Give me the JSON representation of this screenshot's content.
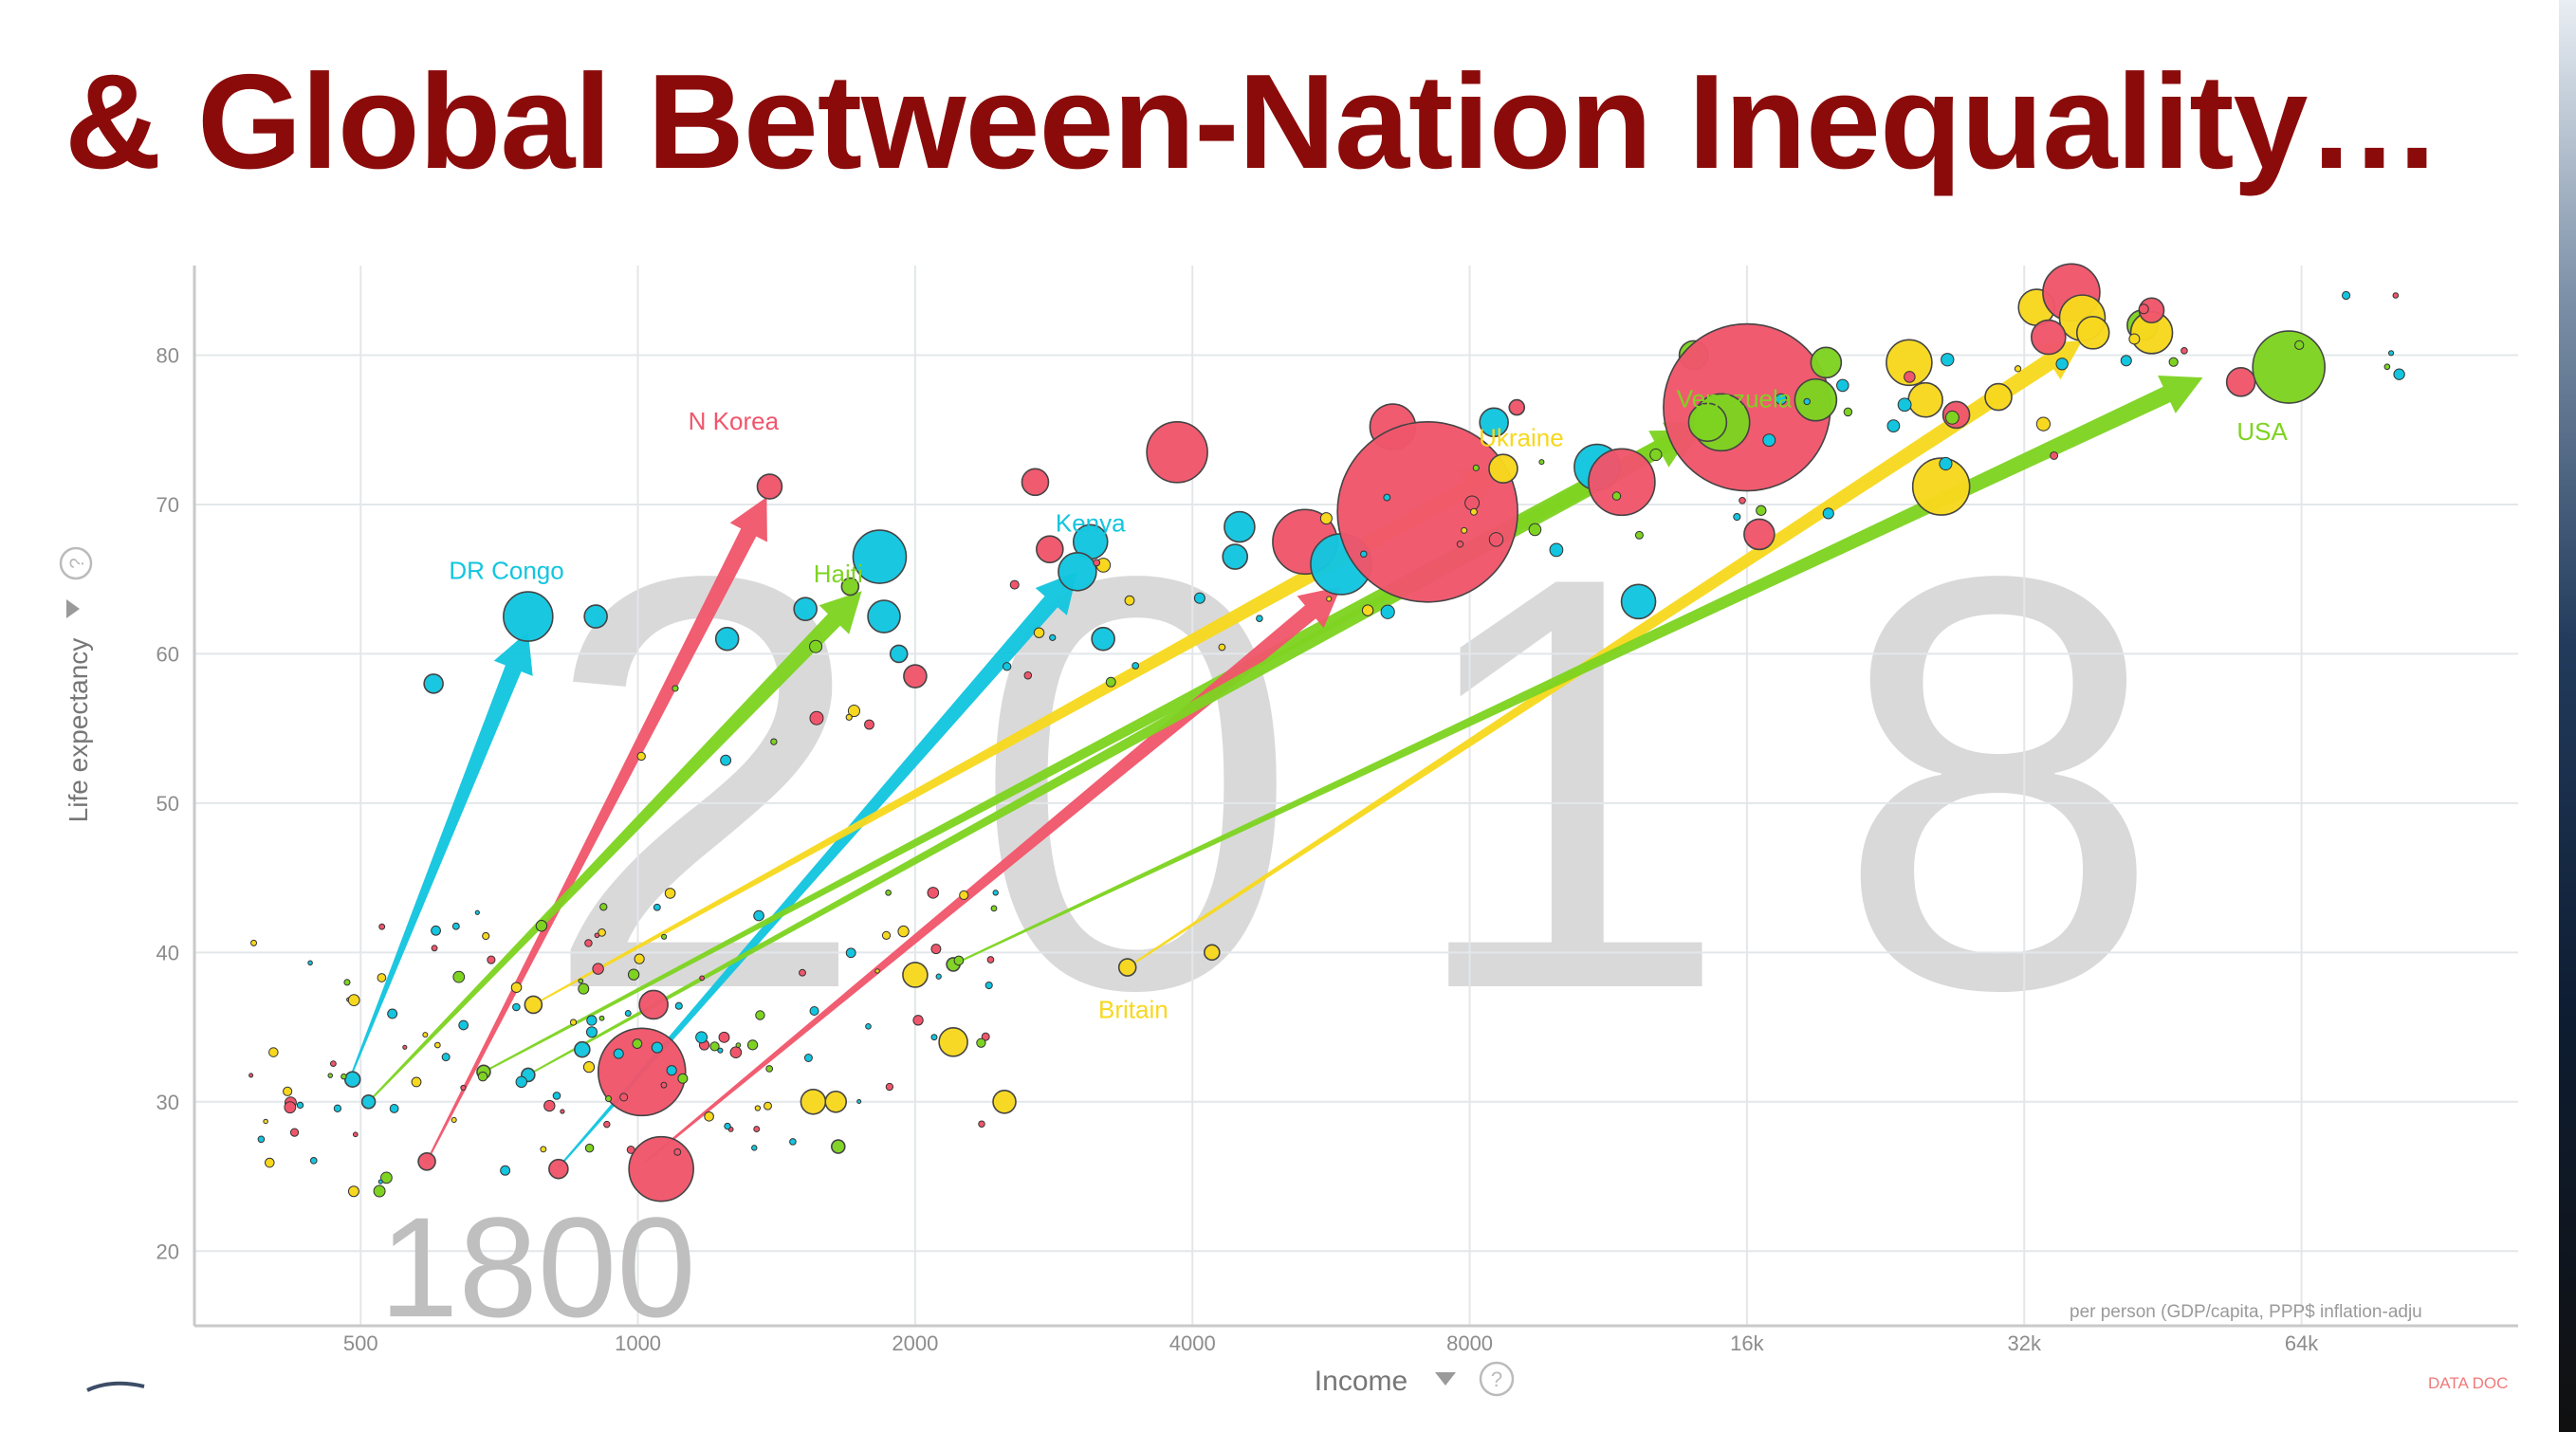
{
  "slide": {
    "title": "& Global Between-Nation Inequality…",
    "title_color": "#8b0b0b"
  },
  "chart_data": {
    "type": "scatter",
    "title": "",
    "xlabel": "Income",
    "xlabel_icons": [
      "dropdown-triangle-icon",
      "help-circle-icon"
    ],
    "ylabel": "Life expectancy",
    "ylabel_icons": [
      "dropdown-triangle-icon",
      "help-circle-icon"
    ],
    "x_scale": "log",
    "xlim": [
      330,
      110000
    ],
    "ylim": [
      15,
      86
    ],
    "x_ticks": [
      500,
      1000,
      2000,
      4000,
      8000,
      16000,
      32000,
      64000
    ],
    "x_tick_labels": [
      "500",
      "1000",
      "2000",
      "4000",
      "8000",
      "16k",
      "32k",
      "64k"
    ],
    "y_ticks": [
      20,
      30,
      40,
      50,
      60,
      70,
      80
    ],
    "y_tick_labels": [
      "20",
      "30",
      "40",
      "50",
      "60",
      "70",
      "80"
    ],
    "grid": true,
    "axis_note": "per person (GDP/capita, PPP$ inflation-adju",
    "footer_note": "DATA DOC",
    "background_year": "2018",
    "start_year": "1800",
    "colors": {
      "red": "#f0566b",
      "cyan": "#13c5df",
      "green": "#7ed321",
      "yellow": "#f7d81e",
      "grid": "#e3e7ea",
      "year_text": "#d9d9d9",
      "start_year_text": "#bfbfbf",
      "tick": "#8c8c8c",
      "note_red": "#f07a7a"
    },
    "trajectories": [
      {
        "country": "DR Congo",
        "color": "cyan",
        "from": [
          490,
          32
        ],
        "to": [
          760,
          61.5
        ],
        "label_at": [
          720,
          65
        ]
      },
      {
        "country": "N Korea",
        "color": "red",
        "from": [
          590,
          26
        ],
        "to": [
          1380,
          70.5
        ],
        "label_at": [
          1270,
          75
        ]
      },
      {
        "country": "Haiti",
        "color": "green",
        "from": [
          510,
          30
        ],
        "to": [
          1750,
          64.2
        ],
        "label_at": [
          1650,
          64.8
        ]
      },
      {
        "country": "Kenya",
        "color": "cyan",
        "from": [
          820,
          25.6
        ],
        "to": [
          3000,
          65.5
        ],
        "label_at": [
          3100,
          68.2
        ]
      },
      {
        "country": "Ukraine",
        "color": "yellow",
        "from": [
          770,
          36.5
        ],
        "to": [
          8700,
          72.4
        ],
        "label_at": [
          9100,
          73.9
        ]
      },
      {
        "country": "Venezuela",
        "color": "green",
        "from": [
          680,
          32
        ],
        "to": [
          14500,
          75.5
        ],
        "label_at": [
          15500,
          76.5
        ]
      },
      {
        "country": "Britain",
        "color": "yellow",
        "from": [
          3400,
          39
        ],
        "to": [
          37000,
          81
        ],
        "label_at": [
          3450,
          35.6
        ]
      },
      {
        "country": "USA",
        "color": "green",
        "from": [
          2200,
          39.2
        ],
        "to": [
          50000,
          78.5
        ],
        "label_at": [
          58000,
          74.3
        ]
      },
      {
        "country": "",
        "color": "red",
        "from": [
          1020,
          26
        ],
        "to": [
          5800,
          64.5
        ],
        "label_at": null
      },
      {
        "country": "",
        "color": "green",
        "from": [
          760,
          31.8
        ],
        "to": [
          14000,
          75
        ],
        "label_at": null
      }
    ],
    "bubbles_2018": [
      {
        "x": 760,
        "y": 62.5,
        "r": 26,
        "color": "cyan"
      },
      {
        "x": 1390,
        "y": 71.2,
        "r": 13,
        "color": "red"
      },
      {
        "x": 1520,
        "y": 63,
        "r": 12,
        "color": "cyan"
      },
      {
        "x": 1830,
        "y": 66.5,
        "r": 28,
        "color": "cyan"
      },
      {
        "x": 1850,
        "y": 62.5,
        "r": 17,
        "color": "cyan"
      },
      {
        "x": 1700,
        "y": 64.5,
        "r": 9,
        "color": "green"
      },
      {
        "x": 1920,
        "y": 60,
        "r": 9,
        "color": "cyan"
      },
      {
        "x": 2000,
        "y": 58.5,
        "r": 12,
        "color": "red"
      },
      {
        "x": 1250,
        "y": 61,
        "r": 12,
        "color": "cyan"
      },
      {
        "x": 900,
        "y": 62.5,
        "r": 12,
        "color": "cyan"
      },
      {
        "x": 600,
        "y": 58,
        "r": 10,
        "color": "cyan"
      },
      {
        "x": 2700,
        "y": 71.5,
        "r": 14,
        "color": "red"
      },
      {
        "x": 2800,
        "y": 67,
        "r": 14,
        "color": "red"
      },
      {
        "x": 3100,
        "y": 67.5,
        "r": 18,
        "color": "cyan"
      },
      {
        "x": 3000,
        "y": 65.5,
        "r": 20,
        "color": "cyan"
      },
      {
        "x": 3200,
        "y": 61,
        "r": 12,
        "color": "cyan"
      },
      {
        "x": 3850,
        "y": 73.5,
        "r": 32,
        "color": "red"
      },
      {
        "x": 4500,
        "y": 68.5,
        "r": 16,
        "color": "cyan"
      },
      {
        "x": 4450,
        "y": 66.5,
        "r": 13,
        "color": "cyan"
      },
      {
        "x": 5300,
        "y": 67.5,
        "r": 34,
        "color": "red"
      },
      {
        "x": 5800,
        "y": 66,
        "r": 32,
        "color": "cyan"
      },
      {
        "x": 6600,
        "y": 75.2,
        "r": 24,
        "color": "red"
      },
      {
        "x": 7200,
        "y": 69.5,
        "r": 95,
        "color": "red"
      },
      {
        "x": 8700,
        "y": 72.4,
        "r": 15,
        "color": "yellow"
      },
      {
        "x": 8500,
        "y": 75.5,
        "r": 15,
        "color": "cyan"
      },
      {
        "x": 9000,
        "y": 76.5,
        "r": 8,
        "color": "red"
      },
      {
        "x": 11000,
        "y": 72.5,
        "r": 24,
        "color": "cyan"
      },
      {
        "x": 11700,
        "y": 71.5,
        "r": 35,
        "color": "red"
      },
      {
        "x": 12200,
        "y": 63.5,
        "r": 18,
        "color": "cyan"
      },
      {
        "x": 14000,
        "y": 80,
        "r": 15,
        "color": "green"
      },
      {
        "x": 16000,
        "y": 76.5,
        "r": 88,
        "color": "red"
      },
      {
        "x": 15000,
        "y": 75.5,
        "r": 30,
        "color": "green"
      },
      {
        "x": 14500,
        "y": 75.5,
        "r": 20,
        "color": "green"
      },
      {
        "x": 16500,
        "y": 68,
        "r": 16,
        "color": "red"
      },
      {
        "x": 19000,
        "y": 77,
        "r": 22,
        "color": "green"
      },
      {
        "x": 19500,
        "y": 79.5,
        "r": 16,
        "color": "green"
      },
      {
        "x": 24000,
        "y": 79.5,
        "r": 24,
        "color": "yellow"
      },
      {
        "x": 25000,
        "y": 77,
        "r": 18,
        "color": "yellow"
      },
      {
        "x": 26000,
        "y": 71.2,
        "r": 30,
        "color": "yellow"
      },
      {
        "x": 27000,
        "y": 76,
        "r": 14,
        "color": "red"
      },
      {
        "x": 33000,
        "y": 83.2,
        "r": 19,
        "color": "yellow"
      },
      {
        "x": 36000,
        "y": 84.2,
        "r": 30,
        "color": "red"
      },
      {
        "x": 37000,
        "y": 82.5,
        "r": 24,
        "color": "yellow"
      },
      {
        "x": 34000,
        "y": 81.2,
        "r": 18,
        "color": "red"
      },
      {
        "x": 38000,
        "y": 81.5,
        "r": 17,
        "color": "yellow"
      },
      {
        "x": 43000,
        "y": 82,
        "r": 16,
        "color": "green"
      },
      {
        "x": 44000,
        "y": 81.5,
        "r": 22,
        "color": "yellow"
      },
      {
        "x": 44000,
        "y": 83,
        "r": 13,
        "color": "red"
      },
      {
        "x": 55000,
        "y": 78.2,
        "r": 15,
        "color": "red"
      },
      {
        "x": 62000,
        "y": 79.2,
        "r": 38,
        "color": "green"
      },
      {
        "x": 30000,
        "y": 77.2,
        "r": 14,
        "color": "yellow"
      }
    ],
    "bubbles_1800": [
      {
        "x": 1010,
        "y": 32,
        "r": 46,
        "color": "red"
      },
      {
        "x": 1060,
        "y": 25.5,
        "r": 34,
        "color": "red"
      },
      {
        "x": 1040,
        "y": 36.5,
        "r": 15,
        "color": "red"
      },
      {
        "x": 2200,
        "y": 34,
        "r": 15,
        "color": "yellow"
      },
      {
        "x": 2500,
        "y": 30,
        "r": 12,
        "color": "yellow"
      },
      {
        "x": 2000,
        "y": 38.5,
        "r": 13,
        "color": "yellow"
      },
      {
        "x": 1550,
        "y": 30,
        "r": 13,
        "color": "yellow"
      },
      {
        "x": 1640,
        "y": 30,
        "r": 11,
        "color": "yellow"
      },
      {
        "x": 820,
        "y": 25.5,
        "r": 10,
        "color": "red"
      },
      {
        "x": 1650,
        "y": 27,
        "r": 7,
        "color": "green"
      },
      {
        "x": 3400,
        "y": 39,
        "r": 9,
        "color": "yellow"
      },
      {
        "x": 4200,
        "y": 40,
        "r": 8,
        "color": "yellow"
      },
      {
        "x": 2200,
        "y": 39.2,
        "r": 7,
        "color": "green"
      },
      {
        "x": 770,
        "y": 36.5,
        "r": 9,
        "color": "yellow"
      },
      {
        "x": 490,
        "y": 31.5,
        "r": 8,
        "color": "cyan"
      },
      {
        "x": 510,
        "y": 30,
        "r": 7,
        "color": "cyan"
      },
      {
        "x": 590,
        "y": 26,
        "r": 9,
        "color": "red"
      },
      {
        "x": 680,
        "y": 32,
        "r": 7,
        "color": "green"
      },
      {
        "x": 760,
        "y": 31.8,
        "r": 7,
        "color": "cyan"
      },
      {
        "x": 870,
        "y": 33.5,
        "r": 8,
        "color": "cyan"
      }
    ]
  }
}
